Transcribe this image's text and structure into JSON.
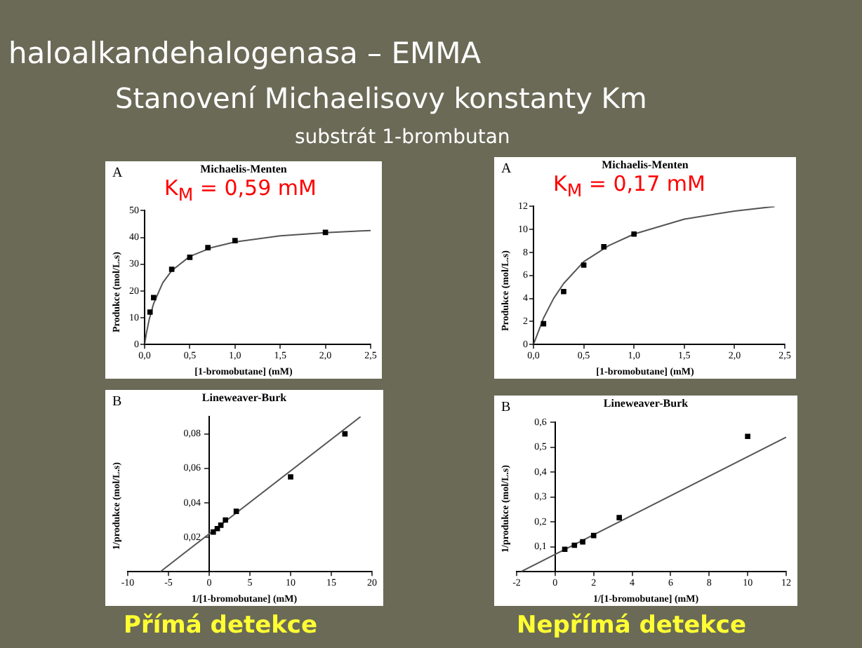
{
  "chart_data": [
    {
      "type": "other",
      "title": "haloalkandehalogenasa – EMMA",
      "subtitle": "Stanovení Michaelisovy konstanty Km",
      "annotations": [
        "substrát 1-brombutan",
        "Přímá detekce",
        "Nepřímá detekce"
      ]
    },
    {
      "type": "scatter",
      "title": "Michaelis-Menten",
      "xlabel": "[1-bromobutane] (mM)",
      "ylabel": "Produkce (mol/L.s)",
      "annotations": [
        "A",
        "K$_{M}$ = 0,59 mM"
      ],
      "xlim": [
        0,
        2.5
      ],
      "xticks": [
        {
          "value": 0,
          "label": "0,0"
        },
        {
          "value": 0.5,
          "label": "0,5"
        },
        {
          "value": 1,
          "label": "1,0"
        },
        {
          "value": 1.5,
          "label": "1,5"
        },
        {
          "value": 2,
          "label": "2,0"
        },
        {
          "value": 2.5,
          "label": "2,5"
        }
      ],
      "ylim": [
        0,
        50
      ],
      "yticks": [
        0,
        10,
        20,
        30,
        40,
        50
      ],
      "grid": false,
      "legend": false,
      "series": [
        {
          "type": "scatter",
          "color": "#000000",
          "marker": "square",
          "x": [
            0.06,
            0.1,
            0.3,
            0.5,
            0.7,
            1.0,
            2.0
          ],
          "values": [
            12.1,
            17.5,
            28.1,
            32.6,
            36.2,
            38.8,
            41.9
          ]
        },
        {
          "type": "line",
          "color": "#555555",
          "marker": "none",
          "x": [
            0,
            0.02,
            0.05,
            0.1,
            0.2,
            0.3,
            0.5,
            0.75,
            1.0,
            1.5,
            2.0,
            2.5
          ],
          "values": [
            0,
            4.2,
            9.2,
            15.3,
            23,
            27.6,
            32.9,
            36.3,
            38.3,
            40.6,
            41.8,
            42.6
          ]
        }
      ]
    },
    {
      "type": "scatter",
      "title": "Michaelis-Menten",
      "xlabel": "[1-bromobutane] (mM)",
      "ylabel": "Produkce (mol/L.s)",
      "annotations": [
        "A",
        "K$_{M}$ = 0,17 mM"
      ],
      "xlim": [
        0,
        2.5
      ],
      "xticks": [
        {
          "value": 0,
          "label": "0,0"
        },
        {
          "value": 0.5,
          "label": "0,5"
        },
        {
          "value": 1,
          "label": "1,0"
        },
        {
          "value": 1.5,
          "label": "1,5"
        },
        {
          "value": 2,
          "label": "2,0"
        },
        {
          "value": 2.5,
          "label": "2,5"
        }
      ],
      "ylim": [
        0,
        12
      ],
      "yticks": [
        0,
        2,
        4,
        6,
        8,
        10,
        12
      ],
      "grid": false,
      "legend": false,
      "series": [
        {
          "type": "scatter",
          "color": "#000000",
          "marker": "square",
          "x": [
            0.1,
            0.3,
            0.5,
            0.7,
            1.0
          ],
          "values": [
            1.8,
            4.6,
            6.9,
            8.5,
            9.6
          ]
        },
        {
          "type": "line",
          "color": "#555555",
          "marker": "none",
          "x": [
            0,
            0.1,
            0.2,
            0.3,
            0.5,
            0.75,
            1.0,
            1.5,
            2.0,
            2.4
          ],
          "values": [
            0,
            2.3,
            4.0,
            5.3,
            7.2,
            8.6,
            9.6,
            10.9,
            11.6,
            12.0
          ]
        }
      ]
    },
    {
      "type": "scatter",
      "title": "Lineweaver-Burk",
      "xlabel": "1/[1-bromobutane] (mM)",
      "ylabel": "1/produkce (mol/L.s)",
      "annotations": [
        "B"
      ],
      "xlim": [
        -10,
        20
      ],
      "xticks": [
        -10,
        -5,
        0,
        5,
        10,
        15,
        20
      ],
      "ylim": [
        0,
        0.09
      ],
      "yticks": [
        {
          "value": 0.02,
          "label": "0,02"
        },
        {
          "value": 0.04,
          "label": "0,04"
        },
        {
          "value": 0.06,
          "label": "0,06"
        },
        {
          "value": 0.08,
          "label": "0,08"
        }
      ],
      "grid": false,
      "legend": false,
      "series": [
        {
          "type": "scatter",
          "color": "#000000",
          "marker": "square",
          "x": [
            0.5,
            1,
            1.43,
            2,
            3.33,
            10,
            16.67
          ],
          "values": [
            0.023,
            0.025,
            0.027,
            0.03,
            0.035,
            0.055,
            0.08
          ]
        },
        {
          "type": "line",
          "color": "#555555",
          "marker": "none",
          "x": [
            -6,
            18.6
          ],
          "values": [
            0,
            0.09
          ]
        }
      ]
    },
    {
      "type": "scatter",
      "title": "Lineweaver-Burk",
      "xlabel": "1/[1-bromobutane] (mM)",
      "ylabel": "1/produkce (mol/L.s)",
      "annotations": [
        "B"
      ],
      "xlim": [
        -2,
        12
      ],
      "xticks": [
        -2,
        0,
        2,
        4,
        6,
        8,
        10,
        12
      ],
      "ylim": [
        0,
        0.6
      ],
      "yticks": [
        {
          "value": 0.1,
          "label": "0,1"
        },
        {
          "value": 0.2,
          "label": "0,2"
        },
        {
          "value": 0.3,
          "label": "0,3"
        },
        {
          "value": 0.4,
          "label": "0,4"
        },
        {
          "value": 0.5,
          "label": "0,5"
        },
        {
          "value": 0.6,
          "label": "0,6"
        }
      ],
      "grid": false,
      "legend": false,
      "series": [
        {
          "type": "scatter",
          "color": "#000000",
          "marker": "square",
          "x": [
            0.5,
            1,
            1.43,
            2,
            3.33,
            10
          ],
          "values": [
            0.09,
            0.106,
            0.12,
            0.145,
            0.217,
            0.543
          ]
        },
        {
          "type": "line",
          "color": "#555555",
          "marker": "none",
          "x": [
            -1.78,
            12
          ],
          "values": [
            0,
            0.54
          ]
        }
      ]
    }
  ]
}
